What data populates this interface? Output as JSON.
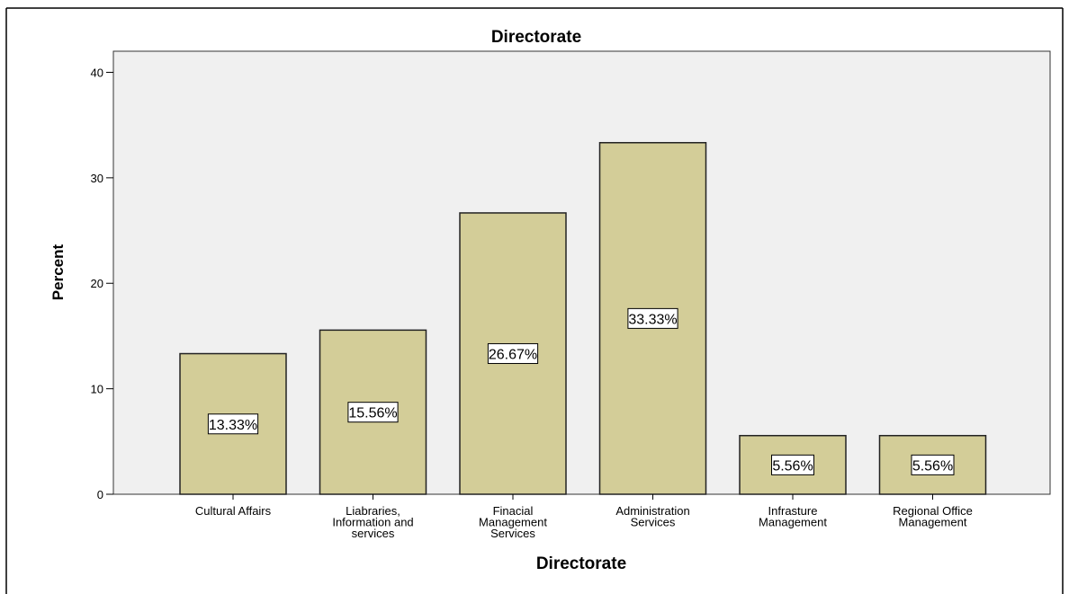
{
  "chart_data": {
    "type": "bar",
    "title": "Directorate",
    "xlabel": "Directorate",
    "ylabel": "Percent",
    "ylim": [
      0,
      42
    ],
    "yticks": [
      0,
      10,
      20,
      30,
      40
    ],
    "grid": false,
    "legend": "none",
    "categories": [
      [
        "Cultural Affairs"
      ],
      [
        "Liabraries,",
        "Information and",
        "services"
      ],
      [
        "Finacial",
        "Management",
        "Services"
      ],
      [
        "Administration",
        "Services"
      ],
      [
        "Infrasture",
        "Management"
      ],
      [
        "Regional Office",
        "Management"
      ]
    ],
    "values": [
      13.33,
      15.56,
      26.67,
      33.33,
      5.56,
      5.56
    ],
    "data_labels": [
      "13.33%",
      "15.56%",
      "26.67%",
      "33.33%",
      "5.56%",
      "5.56%"
    ],
    "colors": {
      "bar_fill": "#d3cd98",
      "bar_stroke": "#222222",
      "plot_bg": "#f0f0f0",
      "label_bg": "#ffffff"
    }
  }
}
